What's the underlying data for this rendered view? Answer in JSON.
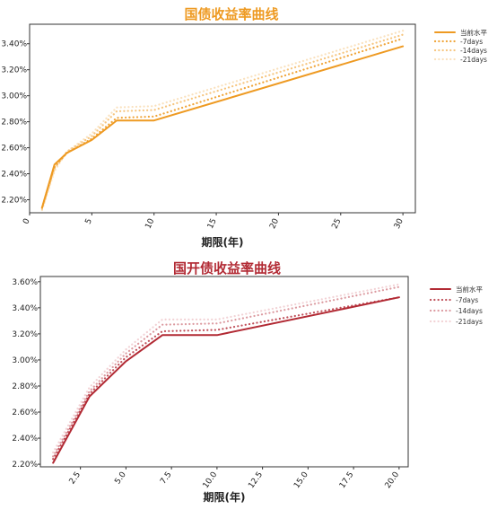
{
  "chart_data": [
    {
      "type": "line",
      "title": "国债收益率曲线",
      "xlabel": "期限(年)",
      "ylabel": "",
      "xlim": [
        0,
        31
      ],
      "ylim": [
        2.1,
        3.55
      ],
      "x_ticks": [
        0,
        5,
        10,
        15,
        20,
        25,
        30
      ],
      "x_tick_labels": [
        "0",
        "5",
        "10",
        "15",
        "20",
        "25",
        "30"
      ],
      "y_ticks": [
        2.2,
        2.4,
        2.6,
        2.8,
        3.0,
        3.2,
        3.4
      ],
      "y_tick_labels": [
        "2.20%",
        "2.40%",
        "2.60%",
        "2.80%",
        "3.00%",
        "3.20%",
        "3.40%"
      ],
      "grid": false,
      "legend_position": "top-right",
      "x": [
        1,
        2,
        3,
        5,
        7,
        10,
        30
      ],
      "series": [
        {
          "name": "当前水平",
          "values": [
            2.14,
            2.47,
            2.56,
            2.66,
            2.81,
            2.81,
            3.38
          ],
          "color": "#EE9A22",
          "style": "solid"
        },
        {
          "name": "-7days",
          "values": [
            2.14,
            2.45,
            2.56,
            2.67,
            2.83,
            2.84,
            3.44
          ],
          "color": "#F0A53A",
          "style": "dotted"
        },
        {
          "name": "-14days",
          "values": [
            2.13,
            2.44,
            2.57,
            2.69,
            2.88,
            2.89,
            3.47
          ],
          "color": "#F6C57F",
          "style": "dotted"
        },
        {
          "name": "-21days",
          "values": [
            2.12,
            2.42,
            2.57,
            2.71,
            2.91,
            2.92,
            3.5
          ],
          "color": "#FAE1BD",
          "style": "dotted"
        }
      ]
    },
    {
      "type": "line",
      "title": "国开债收益率曲线",
      "xlabel": "期限(年)",
      "ylabel": "",
      "xlim": [
        0.3,
        20.5
      ],
      "ylim": [
        2.18,
        3.64
      ],
      "x_ticks": [
        2.5,
        5.0,
        7.5,
        10.0,
        12.5,
        15.0,
        17.5,
        20.0
      ],
      "x_tick_labels": [
        "2.5",
        "5.0",
        "7.5",
        "10.0",
        "12.5",
        "15.0",
        "17.5",
        "20.0"
      ],
      "y_ticks": [
        2.2,
        2.4,
        2.6,
        2.8,
        3.0,
        3.2,
        3.4,
        3.6
      ],
      "y_tick_labels": [
        "2.20%",
        "2.40%",
        "2.60%",
        "2.80%",
        "3.00%",
        "3.20%",
        "3.40%",
        "3.60%"
      ],
      "grid": false,
      "legend_position": "top-right",
      "x": [
        1,
        3,
        5,
        7,
        10,
        20
      ],
      "series": [
        {
          "name": "当前水平",
          "values": [
            2.21,
            2.72,
            2.99,
            3.19,
            3.19,
            3.48
          ],
          "color": "#B22A34",
          "style": "solid"
        },
        {
          "name": "-7days",
          "values": [
            2.24,
            2.74,
            3.02,
            3.22,
            3.23,
            3.48
          ],
          "color": "#C0505A",
          "style": "dotted"
        },
        {
          "name": "-14days",
          "values": [
            2.26,
            2.76,
            3.05,
            3.27,
            3.28,
            3.56
          ],
          "color": "#DC9AA0",
          "style": "dotted"
        },
        {
          "name": "-21days",
          "values": [
            2.29,
            2.79,
            3.08,
            3.31,
            3.31,
            3.58
          ],
          "color": "#F2D2D5",
          "style": "dotted"
        }
      ]
    }
  ]
}
